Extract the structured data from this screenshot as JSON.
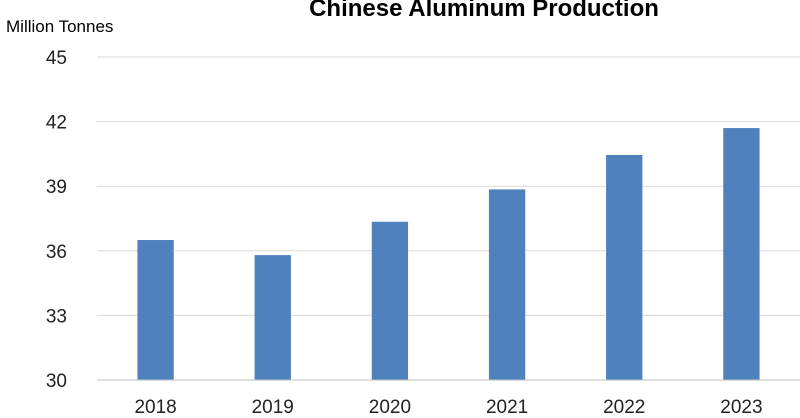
{
  "chart_data": {
    "type": "bar",
    "title": "Chinese Aluminum Production",
    "ylabel": "Million Tonnes",
    "xlabel": "",
    "categories": [
      "2018",
      "2019",
      "2020",
      "2021",
      "2022",
      "2023"
    ],
    "series": [
      {
        "values": [
          36.5,
          35.8,
          37.35,
          38.85,
          40.45,
          41.7
        ]
      }
    ],
    "ylim": [
      30,
      45
    ],
    "yticks": [
      "30",
      "33",
      "36",
      "39",
      "42",
      "45"
    ],
    "grid": true,
    "legend": "none",
    "bar_color": "#4f81bd"
  }
}
